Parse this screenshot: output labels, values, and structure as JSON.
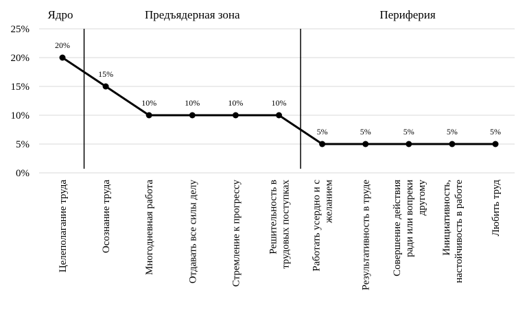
{
  "chart_data": {
    "type": "line",
    "categories": [
      [
        "Целеполагание труда"
      ],
      [
        "Осознание труда"
      ],
      [
        "Многодневная работа"
      ],
      [
        "Отдавать все силы делу"
      ],
      [
        "Стремление к прогрессу"
      ],
      [
        "Решительность в",
        "трудовых поступках"
      ],
      [
        "Работать усердно и с",
        "желанием"
      ],
      [
        "Результативность в труде"
      ],
      [
        "Совершение действия",
        "ради или вопреки",
        "другому"
      ],
      [
        "Инициативность,",
        "настойчивость в работе"
      ],
      [
        "Любить труд"
      ]
    ],
    "values": [
      20,
      15,
      10,
      10,
      10,
      10,
      5,
      5,
      5,
      5,
      5
    ],
    "data_labels": [
      "20%",
      "15%",
      "10%",
      "10%",
      "10%",
      "10%",
      "5%",
      "5%",
      "5%",
      "5%",
      "5%"
    ],
    "y_ticks": [
      "0%",
      "5%",
      "10%",
      "15%",
      "20%",
      "25%"
    ],
    "ylim": [
      0,
      25
    ],
    "grid": true,
    "zones": [
      {
        "label": "Ядро",
        "from": 0,
        "to": 0
      },
      {
        "label": "Предъядерная зона",
        "from": 1,
        "to": 5
      },
      {
        "label": "Периферия",
        "from": 6,
        "to": 10
      }
    ],
    "line_color": "#000000",
    "grid_color": "#d9d9d9"
  }
}
